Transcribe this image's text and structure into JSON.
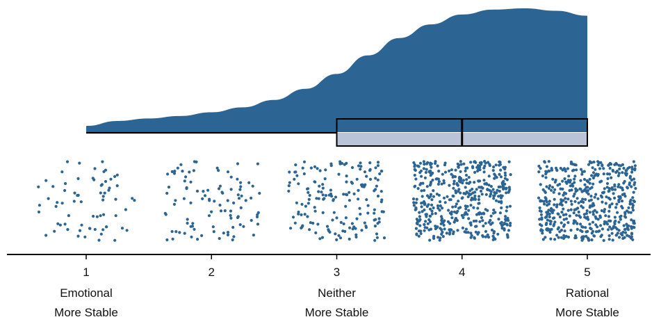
{
  "chart_data": {
    "type": "raincloud",
    "title": "",
    "xlabel": "",
    "ylabel": "",
    "xlim": [
      0.35,
      5.6
    ],
    "ticks": [
      1,
      2,
      3,
      4,
      5
    ],
    "tick_labels": [
      "1",
      "2",
      "3",
      "4",
      "5"
    ],
    "category_labels": [
      {
        "x": 1,
        "lines": [
          "Emotional",
          "More Stable"
        ]
      },
      {
        "x": 3,
        "lines": [
          "Neither",
          "More Stable"
        ]
      },
      {
        "x": 5,
        "lines": [
          "Rational",
          "More Stable"
        ]
      }
    ],
    "density_curve": [
      [
        1.0,
        0.05
      ],
      [
        1.25,
        0.09
      ],
      [
        1.5,
        0.11
      ],
      [
        1.75,
        0.13
      ],
      [
        2.0,
        0.16
      ],
      [
        2.25,
        0.2
      ],
      [
        2.5,
        0.26
      ],
      [
        2.75,
        0.35
      ],
      [
        3.0,
        0.47
      ],
      [
        3.25,
        0.62
      ],
      [
        3.5,
        0.76
      ],
      [
        3.75,
        0.87
      ],
      [
        4.0,
        0.95
      ],
      [
        4.25,
        0.99
      ],
      [
        4.5,
        1.0
      ],
      [
        4.75,
        0.98
      ],
      [
        5.0,
        0.94
      ]
    ],
    "boxplot": {
      "min": 1,
      "q1": 3,
      "median": 4,
      "q3": 5,
      "max": 5
    },
    "point_counts": {
      "1": 70,
      "2": 100,
      "3": 170,
      "4": 480,
      "5": 520
    },
    "colors": {
      "density": "#2c6493",
      "points": "#2c6493",
      "box_fill": "#b9c4d8",
      "box_stroke": "#000000",
      "axis": "#000000"
    }
  }
}
